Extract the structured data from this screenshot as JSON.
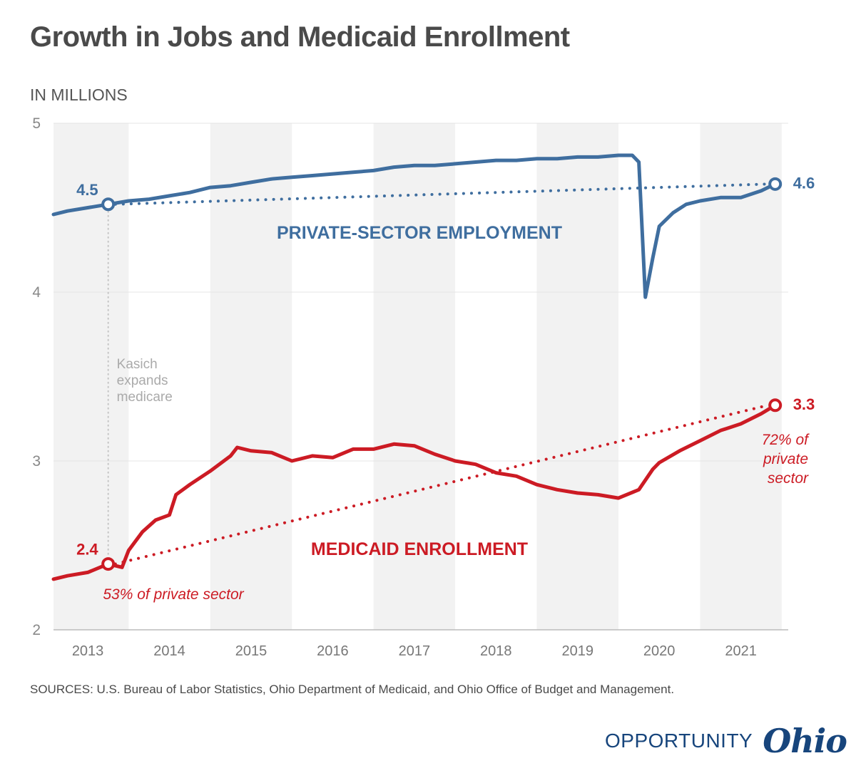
{
  "title": "Growth in Jobs and Medicaid Enrollment",
  "unit_label": "IN MILLIONS",
  "sources": "SOURCES: U.S. Bureau of Labor Statistics, Ohio Department of Medicaid, and Ohio Office of Budget and Management.",
  "logo": {
    "word": "OPPORTUNITY",
    "script": "Ohio"
  },
  "colors": {
    "employment": "#3f6e9f",
    "medicaid": "#cc1b24",
    "band": "#f2f2f2",
    "grid": "#e4e4e4",
    "annotation": "#aaaaaa"
  },
  "chart_data": {
    "type": "line",
    "ylim": [
      2,
      5
    ],
    "xlim": [
      2012.58,
      2021.58
    ],
    "y_ticks": [
      "2",
      "3",
      "4",
      "5"
    ],
    "x_ticks": [
      "2013",
      "2014",
      "2015",
      "2016",
      "2017",
      "2018",
      "2019",
      "2020",
      "2021"
    ],
    "grid": true,
    "series": [
      {
        "name": "PRIVATE-SECTOR EMPLOYMENT",
        "x": [
          2012.58,
          2012.75,
          2013.0,
          2013.25,
          2013.5,
          2013.75,
          2014.0,
          2014.25,
          2014.5,
          2014.75,
          2015.0,
          2015.25,
          2015.5,
          2015.75,
          2016.0,
          2016.25,
          2016.5,
          2016.75,
          2017.0,
          2017.25,
          2017.5,
          2017.75,
          2018.0,
          2018.25,
          2018.5,
          2018.75,
          2019.0,
          2019.25,
          2019.5,
          2019.67,
          2019.75,
          2019.83,
          2019.92,
          2020.0,
          2020.17,
          2020.33,
          2020.5,
          2020.75,
          2021.0,
          2021.25,
          2021.42
        ],
        "values": [
          4.46,
          4.48,
          4.5,
          4.52,
          4.54,
          4.55,
          4.57,
          4.59,
          4.62,
          4.63,
          4.65,
          4.67,
          4.68,
          4.69,
          4.7,
          4.71,
          4.72,
          4.74,
          4.75,
          4.75,
          4.76,
          4.77,
          4.78,
          4.78,
          4.79,
          4.79,
          4.8,
          4.8,
          4.81,
          4.81,
          4.77,
          3.97,
          4.2,
          4.39,
          4.47,
          4.52,
          4.54,
          4.56,
          4.56,
          4.6,
          4.64
        ]
      },
      {
        "name": "MEDICAID ENROLLMENT",
        "x": [
          2012.58,
          2012.75,
          2013.0,
          2013.25,
          2013.42,
          2013.5,
          2013.67,
          2013.83,
          2014.0,
          2014.08,
          2014.25,
          2014.5,
          2014.75,
          2014.83,
          2015.0,
          2015.25,
          2015.5,
          2015.75,
          2016.0,
          2016.25,
          2016.5,
          2016.75,
          2017.0,
          2017.25,
          2017.5,
          2017.75,
          2018.0,
          2018.25,
          2018.5,
          2018.75,
          2019.0,
          2019.25,
          2019.5,
          2019.75,
          2019.92,
          2020.0,
          2020.25,
          2020.5,
          2020.75,
          2021.0,
          2021.25,
          2021.42
        ],
        "values": [
          2.3,
          2.32,
          2.34,
          2.39,
          2.37,
          2.47,
          2.58,
          2.65,
          2.68,
          2.8,
          2.86,
          2.94,
          3.03,
          3.08,
          3.06,
          3.05,
          3.0,
          3.03,
          3.02,
          3.07,
          3.07,
          3.1,
          3.09,
          3.04,
          3.0,
          2.98,
          2.93,
          2.91,
          2.86,
          2.83,
          2.81,
          2.8,
          2.78,
          2.83,
          2.95,
          2.99,
          3.06,
          3.12,
          3.18,
          3.22,
          3.28,
          3.33
        ]
      }
    ],
    "markers": [
      {
        "series": 0,
        "x": 2013.25,
        "y": 4.52,
        "label": "4.5"
      },
      {
        "series": 0,
        "x": 2021.42,
        "y": 4.64,
        "label": "4.6"
      },
      {
        "series": 1,
        "x": 2013.25,
        "y": 2.39,
        "label": "2.4"
      },
      {
        "series": 1,
        "x": 2021.42,
        "y": 3.33,
        "label": "3.3"
      }
    ],
    "annotations": [
      {
        "text": "Kasich\nexpands\nmedicare",
        "x": 2013.25
      },
      {
        "text": "53% of private sector",
        "series": 1
      },
      {
        "text": "72% of\nprivate\nsector",
        "series": 1
      }
    ]
  }
}
